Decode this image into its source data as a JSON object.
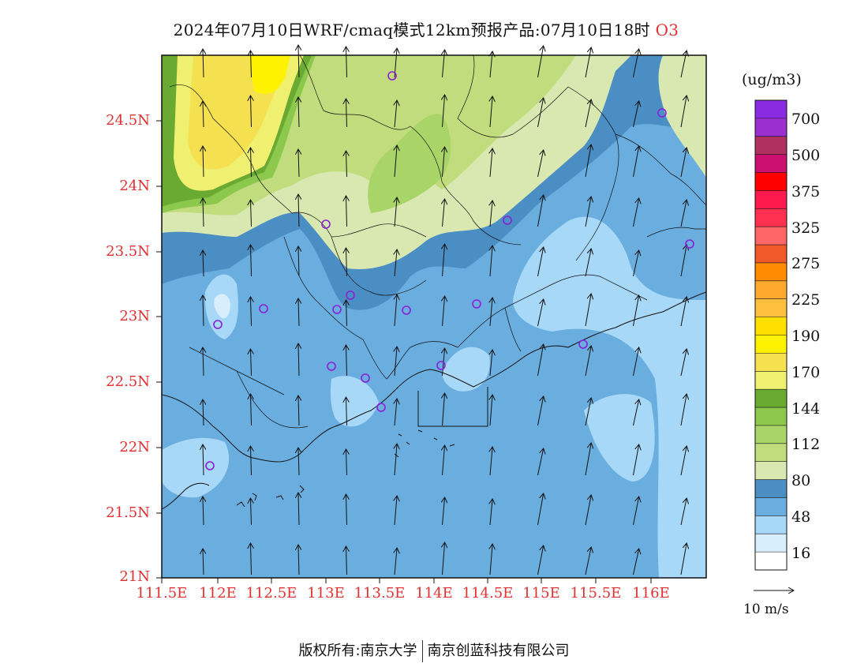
{
  "title": {
    "main": "2024年07月10日WRF/cmaq模式12km预报产品:07月10日18时",
    "species": "O3"
  },
  "map": {
    "lat_labels": [
      "24.5N",
      "24N",
      "23.5N",
      "23N",
      "22.5N",
      "22N",
      "21.5N",
      "21N"
    ],
    "lon_labels": [
      "111.5E",
      "112E",
      "112.5E",
      "113E",
      "113.5E",
      "114E",
      "114.5E",
      "115E",
      "115.5E",
      "116E"
    ],
    "station_marker_color": "#8a1fd8",
    "wind_vector": "northward, about 5-8 m/s over the whole domain"
  },
  "colorbar": {
    "unit": "(ug/m3)",
    "labels": [
      "700",
      "500",
      "375",
      "325",
      "275",
      "225",
      "190",
      "170",
      "144",
      "112",
      "80",
      "48",
      "16"
    ],
    "colors": [
      "#8a2be2",
      "#9b30d0",
      "#b03060",
      "#cc1070",
      "#ff0000",
      "#ff1a4d",
      "#ff3050",
      "#ff6666",
      "#f05a28",
      "#ff8c00",
      "#ffa92e",
      "#ffc040",
      "#ffe000",
      "#fff200",
      "#f5e050",
      "#f0f070",
      "#6aaa32",
      "#8cc84b",
      "#a8d468",
      "#c0dc7c",
      "#d8e8b0",
      "#4a8ec4",
      "#6aaee0",
      "#a8d8f8",
      "#d8eefc",
      "#ffffff"
    ]
  },
  "vector_key": {
    "label": "10 m/s"
  },
  "footer": {
    "left": "版权所有:南京大学",
    "right": "南京创蓝科技有限公司"
  }
}
